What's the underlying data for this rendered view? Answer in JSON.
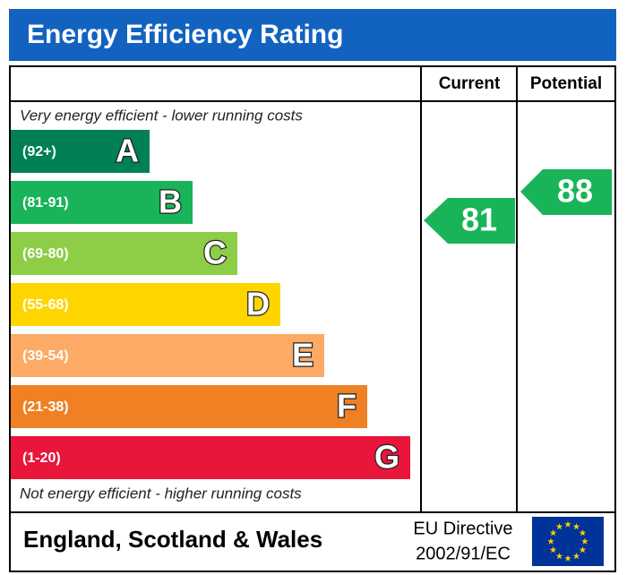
{
  "header": {
    "title": "Energy Efficiency Rating"
  },
  "columns": [
    "Current",
    "Potential"
  ],
  "top_note": "Very energy efficient - lower running costs",
  "bottom_note": "Not energy efficient - higher running costs",
  "bands": [
    {
      "range": "(92+)",
      "letter": "A"
    },
    {
      "range": "(81-91)",
      "letter": "B"
    },
    {
      "range": "(69-80)",
      "letter": "C"
    },
    {
      "range": "(55-68)",
      "letter": "D"
    },
    {
      "range": "(39-54)",
      "letter": "E"
    },
    {
      "range": "(21-38)",
      "letter": "F"
    },
    {
      "range": "(1-20)",
      "letter": "G"
    }
  ],
  "current": "81",
  "potential": "88",
  "footer": {
    "region": "England, Scotland & Wales",
    "directive": [
      "EU Directive",
      "2002/91/EC"
    ]
  }
}
